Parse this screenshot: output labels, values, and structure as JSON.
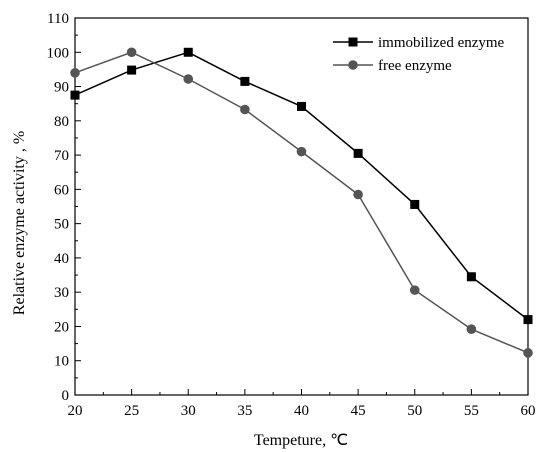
{
  "chart_data": {
    "type": "line",
    "title": "",
    "xlabel": "Tempeture, ℃",
    "ylabel": "Relative enzyme activity , %",
    "x": [
      20,
      25,
      30,
      35,
      40,
      45,
      50,
      55,
      60
    ],
    "xlim": [
      20,
      60
    ],
    "ylim": [
      0,
      110
    ],
    "xticks": [
      "20",
      "25",
      "30",
      "35",
      "40",
      "45",
      "50",
      "55",
      "60"
    ],
    "yticks": [
      "0",
      "10",
      "20",
      "30",
      "40",
      "50",
      "60",
      "70",
      "80",
      "90",
      "100",
      "110"
    ],
    "grid": false,
    "legend_position": "top-right",
    "series": [
      {
        "name": "immobilized enzyme",
        "marker": "square",
        "color": "#000000",
        "values": [
          87.5,
          94.8,
          100,
          91.5,
          84.2,
          70.5,
          55.6,
          34.5,
          22
        ]
      },
      {
        "name": "free enzyme",
        "marker": "circle",
        "color": "#555555",
        "values": [
          94,
          100,
          92.2,
          83.3,
          71,
          58.5,
          30.6,
          19.2,
          12.3
        ]
      }
    ]
  }
}
